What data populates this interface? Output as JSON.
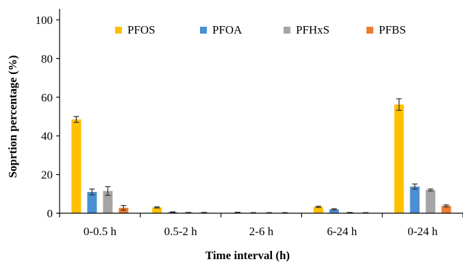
{
  "chart_data": {
    "type": "bar",
    "title": "",
    "xlabel": "Time interval (h)",
    "ylabel": "Soprtion percentage (%)",
    "ylim": [
      0,
      100
    ],
    "yticks": [
      0,
      20,
      40,
      60,
      80,
      100
    ],
    "grid": false,
    "legend_position": "top",
    "categories": [
      "0-0.5 h",
      "0.5-2 h",
      "2-6 h",
      "6-24 h",
      "0-24 h"
    ],
    "series": [
      {
        "name": "PFOS",
        "color": "#FFC000",
        "values": [
          48.5,
          3.0,
          0.4,
          3.3,
          56.2
        ],
        "errors": [
          1.5,
          0.3,
          0.1,
          0.3,
          3.0
        ]
      },
      {
        "name": "PFOA",
        "color": "#4A8FD4",
        "values": [
          11.0,
          0.5,
          0.2,
          2.0,
          13.8
        ],
        "errors": [
          1.5,
          0.2,
          0.1,
          0.3,
          1.3
        ]
      },
      {
        "name": "PFHxS",
        "color": "#A5A5A5",
        "values": [
          11.5,
          0.3,
          0.2,
          0.3,
          12.0
        ],
        "errors": [
          2.2,
          0.1,
          0.1,
          0.1,
          0.5
        ]
      },
      {
        "name": "PFBS",
        "color": "#ED7D31",
        "values": [
          2.8,
          0.3,
          0.2,
          0.2,
          3.8
        ],
        "errors": [
          1.2,
          0.1,
          0.1,
          0.1,
          0.5
        ]
      }
    ]
  }
}
